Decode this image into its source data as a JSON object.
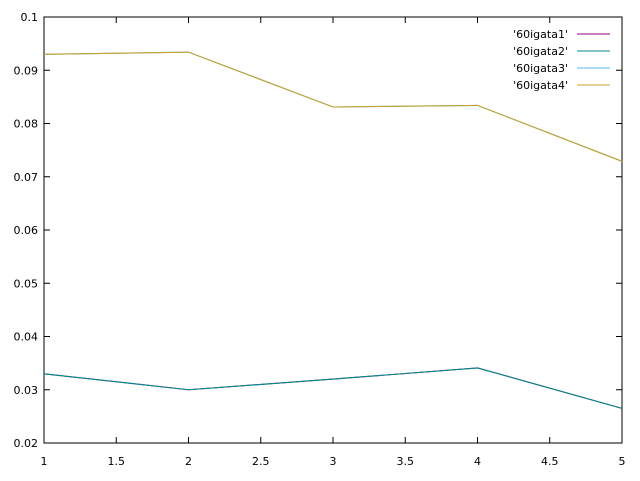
{
  "chart_data": {
    "type": "line",
    "title": "",
    "xlabel": "",
    "ylabel": "",
    "xlim": [
      1,
      5
    ],
    "ylim": [
      0.02,
      0.1
    ],
    "x_ticks": [
      1,
      1.5,
      2,
      2.5,
      3,
      3.5,
      4,
      4.5,
      5
    ],
    "y_ticks": [
      0.02,
      0.03,
      0.04,
      0.05,
      0.06,
      0.07,
      0.08,
      0.09,
      0.1
    ],
    "x_tick_labels": [
      "1",
      "1.5",
      "2",
      "2.5",
      "3",
      "3.5",
      "4",
      "4.5",
      "5"
    ],
    "y_tick_labels": [
      "0.02",
      "0.03",
      "0.04",
      "0.05",
      "0.06",
      "0.07",
      "0.08",
      "0.09",
      "0.1"
    ],
    "grid": false,
    "legend_position": "top-right",
    "x": [
      1,
      2,
      3,
      4,
      5
    ],
    "series": [
      {
        "name": "'60igata1'",
        "color": "#94007f",
        "values": [
          0.033,
          0.03,
          0.032,
          0.0341,
          0.0265
        ]
      },
      {
        "name": "'60igata2'",
        "color": "#00898a",
        "values": [
          0.033,
          0.03,
          0.032,
          0.0341,
          0.0265
        ]
      },
      {
        "name": "'60igata3'",
        "color": "#56b4e9",
        "values": [
          0.093,
          0.0934,
          0.0831,
          0.0834,
          0.0729
        ]
      },
      {
        "name": "'60igata4'",
        "color": "#c8a22b",
        "values": [
          0.093,
          0.0934,
          0.0831,
          0.0834,
          0.0729
        ]
      }
    ]
  }
}
